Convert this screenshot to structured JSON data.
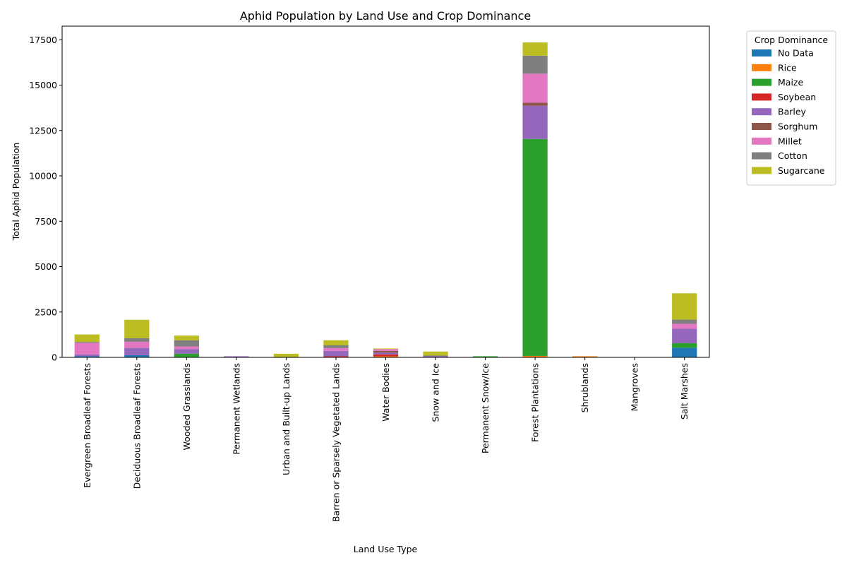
{
  "chart_data": {
    "type": "bar",
    "stacked": true,
    "title": "Aphid Population by Land Use and Crop Dominance",
    "xlabel": "Land Use Type",
    "ylabel": "Total Aphid Population",
    "ylim": [
      0,
      18250
    ],
    "yticks": [
      0,
      2500,
      5000,
      7500,
      10000,
      12500,
      15000,
      17500
    ],
    "grid": false,
    "legend": {
      "title": "Crop Dominance",
      "placement": "outside-right"
    },
    "categories": [
      "Evergreen Broadleaf Forests",
      "Deciduous Broadleaf Forests",
      "Wooded Grasslands",
      "Permanent Wetlands",
      "Urban and Built-up Lands",
      "Barren or Sparsely Vegetated Lands",
      "Water Bodies",
      "Snow and Ice",
      "Permanent Snow/Ice",
      "Forest Plantations",
      "Shrublands",
      "Mangroves",
      "Salt Marshes"
    ],
    "series": [
      {
        "name": "No Data",
        "color": "#1f77b4",
        "values": [
          60,
          120,
          0,
          0,
          0,
          0,
          0,
          0,
          0,
          0,
          0,
          0,
          530
        ]
      },
      {
        "name": "Rice",
        "color": "#ff7f0e",
        "values": [
          0,
          0,
          0,
          0,
          0,
          0,
          60,
          0,
          0,
          80,
          60,
          0,
          0
        ]
      },
      {
        "name": "Maize",
        "color": "#2ca02c",
        "values": [
          0,
          0,
          200,
          0,
          0,
          0,
          0,
          0,
          60,
          11950,
          0,
          0,
          250
        ]
      },
      {
        "name": "Soybean",
        "color": "#d62728",
        "values": [
          0,
          0,
          0,
          0,
          0,
          60,
          100,
          0,
          0,
          0,
          0,
          0,
          0
        ]
      },
      {
        "name": "Barley",
        "color": "#9467bd",
        "values": [
          100,
          400,
          260,
          60,
          0,
          300,
          100,
          60,
          0,
          1830,
          0,
          0,
          800
        ]
      },
      {
        "name": "Sorghum",
        "color": "#8c564b",
        "values": [
          0,
          0,
          0,
          0,
          0,
          0,
          100,
          0,
          0,
          170,
          0,
          0,
          0
        ]
      },
      {
        "name": "Millet",
        "color": "#e377c2",
        "values": [
          640,
          340,
          140,
          0,
          0,
          150,
          100,
          0,
          0,
          1600,
          0,
          0,
          270
        ]
      },
      {
        "name": "Cotton",
        "color": "#7f7f7f",
        "values": [
          50,
          200,
          340,
          0,
          0,
          160,
          0,
          40,
          0,
          990,
          0,
          0,
          230
        ]
      },
      {
        "name": "Sugarcane",
        "color": "#bcbd22",
        "values": [
          410,
          1010,
          260,
          0,
          200,
          270,
          30,
          220,
          0,
          730,
          0,
          0,
          1450
        ]
      }
    ]
  }
}
